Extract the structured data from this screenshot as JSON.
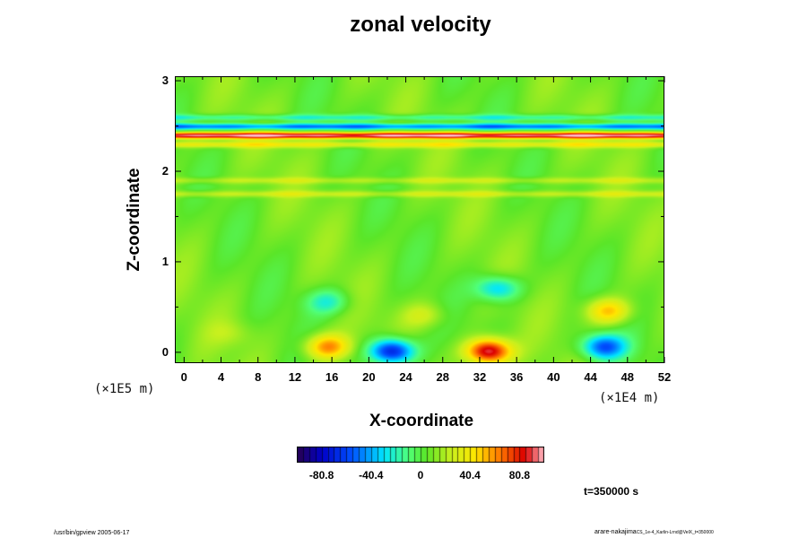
{
  "chart_data": {
    "type": "heatmap",
    "title": "zonal velocity",
    "xlabel": "X-coordinate",
    "ylabel": "Z-coordinate",
    "x_unit": "(×1E4 m)",
    "y_unit": "(×1E5 m)",
    "xlim": [
      -1,
      52
    ],
    "ylim": [
      -0.12,
      3.05
    ],
    "xticks": [
      "0",
      "4",
      "8",
      "12",
      "16",
      "20",
      "24",
      "28",
      "32",
      "36",
      "40",
      "44",
      "48",
      "52"
    ],
    "yticks": [
      "0",
      "1",
      "2",
      "3"
    ],
    "colorbar": {
      "range": [
        -101,
        101
      ],
      "ticks": [
        "-80.8",
        "-40.4",
        "0",
        "40.4",
        "80.8"
      ]
    },
    "bands": [
      {
        "z": 2.5,
        "value": -55
      },
      {
        "z": 2.4,
        "value": 90
      },
      {
        "z": 2.3,
        "value": 30
      },
      {
        "z": 2.6,
        "value": -25
      },
      {
        "z": 1.9,
        "value": 15
      },
      {
        "z": 1.75,
        "value": 18
      }
    ],
    "features": [
      {
        "x": 22.5,
        "z": 0.0,
        "value": -85
      },
      {
        "x": 33.0,
        "z": 0.0,
        "value": 90
      },
      {
        "x": 15.5,
        "z": 0.05,
        "value": 55
      },
      {
        "x": 45.5,
        "z": 0.05,
        "value": -65
      },
      {
        "x": 34.0,
        "z": 0.7,
        "value": -45
      },
      {
        "x": 15.5,
        "z": 0.55,
        "value": -30
      },
      {
        "x": 46.0,
        "z": 0.45,
        "value": 45
      },
      {
        "x": 26.0,
        "z": 0.4,
        "value": 20
      },
      {
        "x": 5.0,
        "z": 0.2,
        "value": 10
      }
    ]
  },
  "time_label": "t=350000 s",
  "footer": {
    "left": "/usr/bin/gpview 2005-06-17",
    "right_main": "arare-nakajima",
    "right_sub": "CS_1e-4_Karlin-Lrnd@VelX_t=350000"
  }
}
